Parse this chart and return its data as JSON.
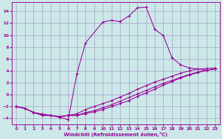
{
  "xlabel": "Windchill (Refroidissement éolien,°C)",
  "background_color": "#cce8e8",
  "grid_color": "#aaaacc",
  "line_color": "#990099",
  "xlim": [
    -0.5,
    23.5
  ],
  "ylim": [
    -5.0,
    15.5
  ],
  "xticks": [
    0,
    1,
    2,
    3,
    4,
    5,
    6,
    7,
    8,
    9,
    10,
    11,
    12,
    13,
    14,
    15,
    16,
    17,
    18,
    19,
    20,
    21,
    22,
    23
  ],
  "yticks": [
    -4,
    -2,
    0,
    2,
    4,
    6,
    8,
    10,
    12,
    14
  ],
  "line1_x": [
    0,
    1,
    2,
    3,
    4,
    5,
    6,
    7,
    8,
    10,
    11,
    12,
    13,
    14,
    15,
    16,
    17,
    18,
    19,
    20,
    21,
    22,
    23
  ],
  "line1_y": [
    -2,
    -2.3,
    -3,
    -3.5,
    -3.5,
    -3.8,
    -4.2,
    3.5,
    8.7,
    12.2,
    12.5,
    12.3,
    13.2,
    14.6,
    14.7,
    11.0,
    9.9,
    6.2,
    5.0,
    4.5,
    4.3,
    4.1,
    4.3
  ],
  "line2_x": [
    0,
    1,
    2,
    3,
    4,
    5,
    6,
    7,
    8,
    9,
    10,
    11,
    12,
    13,
    14,
    15,
    16,
    17,
    18,
    19,
    20,
    21,
    22,
    23
  ],
  "line2_y": [
    -2,
    -2.3,
    -3.0,
    -3.3,
    -3.5,
    -3.7,
    -3.5,
    -3.2,
    -2.5,
    -2.0,
    -1.5,
    -1.0,
    -0.4,
    0.2,
    0.9,
    1.5,
    2.1,
    2.6,
    3.1,
    3.6,
    4.0,
    4.3,
    4.4,
    4.5
  ],
  "line3_x": [
    0,
    1,
    2,
    3,
    4,
    5,
    6,
    7,
    8,
    9,
    10,
    11,
    12,
    13,
    14,
    15,
    16,
    17,
    18,
    19,
    20,
    21,
    22,
    23
  ],
  "line3_y": [
    -2,
    -2.3,
    -3.0,
    -3.3,
    -3.5,
    -3.7,
    -3.5,
    -3.5,
    -3.0,
    -2.7,
    -2.2,
    -1.7,
    -1.1,
    -0.5,
    0.1,
    0.7,
    1.3,
    1.9,
    2.4,
    2.9,
    3.4,
    3.8,
    4.1,
    4.3
  ],
  "line4_x": [
    0,
    1,
    2,
    3,
    4,
    5,
    6,
    7,
    8,
    9,
    10,
    11,
    12,
    13,
    14,
    15,
    16,
    17,
    18,
    19,
    20,
    21,
    22,
    23
  ],
  "line4_y": [
    -2,
    -2.3,
    -3.0,
    -3.3,
    -3.5,
    -3.7,
    -3.5,
    -3.5,
    -3.2,
    -2.9,
    -2.5,
    -2.0,
    -1.5,
    -1.0,
    -0.3,
    0.3,
    0.9,
    1.6,
    2.2,
    2.8,
    3.3,
    3.7,
    4.1,
    4.3
  ]
}
